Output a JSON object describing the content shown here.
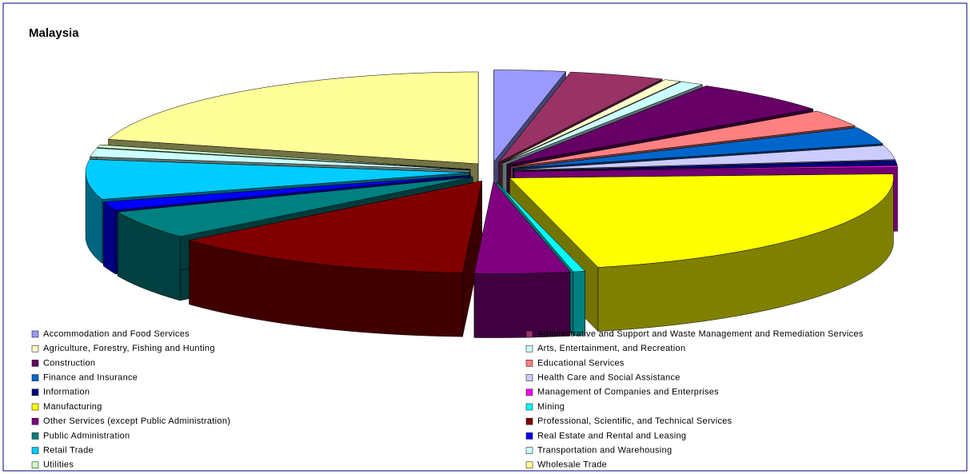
{
  "chart_data": {
    "type": "pie",
    "title": "Malaysia",
    "categories": [
      "Accommodation and Food Services",
      "Administrative and Support and Waste Management and Remediation Services",
      "Agriculture, Forestry, Fishing and Hunting",
      "Arts, Entertainment, and Recreation",
      "Construction",
      "Educational Services",
      "Finance and Insurance",
      "Health Care and Social Assistance",
      "Information",
      "Management of Companies and Enterprises",
      "Manufacturing",
      "Mining",
      "Other Services (except Public Administration)",
      "Professional, Scientific, and Technical Services",
      "Public Administration",
      "Real Estate and Rental and Leasing",
      "Retail Trade",
      "Transportation and Warehousing",
      "Utilities",
      "Wholesale Trade"
    ],
    "values": [
      3,
      4,
      0.7,
      1,
      6,
      3,
      3,
      2.5,
      0.8,
      0.3,
      22,
      0.5,
      4,
      13,
      5,
      1.5,
      7,
      1.5,
      0.5,
      20.7
    ],
    "colors": [
      "#9999FF",
      "#993366",
      "#FFFFCC",
      "#CCFFFF",
      "#660066",
      "#FF8080",
      "#0066CC",
      "#CCCCFF",
      "#000080",
      "#FF00FF",
      "#FFFF00",
      "#00FFFF",
      "#800080",
      "#800000",
      "#008080",
      "#0000FF",
      "#00CCFF",
      "#CCFFFF",
      "#CCFFCC",
      "#FFFF99"
    ],
    "legend": "bottom"
  }
}
